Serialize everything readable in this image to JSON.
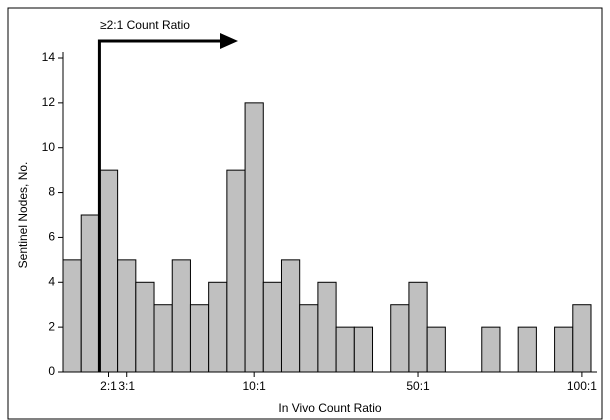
{
  "chart_data": {
    "type": "bar",
    "annotation": "≥2:1 Count Ratio",
    "x_label": "In Vivo Count Ratio",
    "y_label": "Sentinel Nodes, No.",
    "categories": [
      null,
      null,
      "2:1",
      "3:1",
      null,
      null,
      null,
      null,
      null,
      null,
      "10:1",
      null,
      null,
      null,
      null,
      null,
      null,
      null,
      null,
      "50:1",
      null,
      null,
      null,
      null,
      null,
      null,
      null,
      null,
      "100:1"
    ],
    "values": [
      5,
      7,
      9,
      5,
      4,
      3,
      5,
      3,
      4,
      9,
      12,
      4,
      5,
      3,
      4,
      2,
      2,
      0,
      3,
      4,
      2,
      0,
      0,
      2,
      0,
      2,
      0,
      2,
      3
    ],
    "color": "#c0c0c0",
    "ylim": [
      0,
      14
    ],
    "yticks": [
      0,
      2,
      4,
      6,
      8,
      10,
      12,
      14
    ],
    "grid": false
  }
}
